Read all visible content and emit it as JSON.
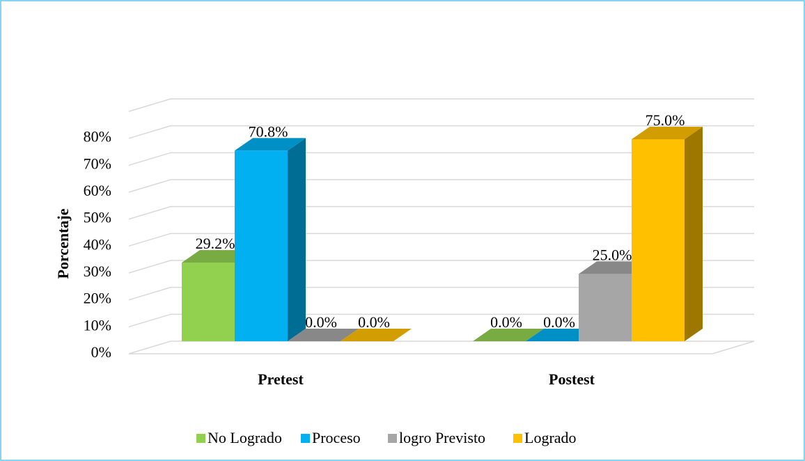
{
  "chart_data": {
    "type": "bar3d",
    "y_label": "Porcentaje",
    "categories": [
      "Pretest",
      "Postest"
    ],
    "series": [
      {
        "name": "No Logrado",
        "color": "#92d050",
        "values": [
          29.2,
          0
        ],
        "value_labels": [
          "29.2%",
          "0.0%"
        ]
      },
      {
        "name": "Proceso",
        "color": "#00b0f0",
        "values": [
          70.8,
          0
        ],
        "value_labels": [
          "70.8%",
          "0.0%"
        ]
      },
      {
        "name": "logro Previsto",
        "color": "#a6a6a6",
        "values": [
          0,
          25
        ],
        "value_labels": [
          "0.0%",
          "25.0%"
        ]
      },
      {
        "name": "Logrado",
        "color": "#ffc000",
        "values": [
          0,
          75
        ],
        "value_labels": [
          "0.0%",
          "75.0%"
        ]
      }
    ],
    "ylim": [
      0,
      90
    ],
    "yticks": [
      {
        "value": 0,
        "label": "0%"
      },
      {
        "value": 10,
        "label": "10%"
      },
      {
        "value": 20,
        "label": "20%"
      },
      {
        "value": 30,
        "label": "30%"
      },
      {
        "value": 40,
        "label": "40%"
      },
      {
        "value": 50,
        "label": "50%"
      },
      {
        "value": 60,
        "label": "60%"
      },
      {
        "value": 70,
        "label": "70%"
      },
      {
        "value": 80,
        "label": "80%"
      }
    ],
    "grid": true,
    "legend": "bottom"
  }
}
